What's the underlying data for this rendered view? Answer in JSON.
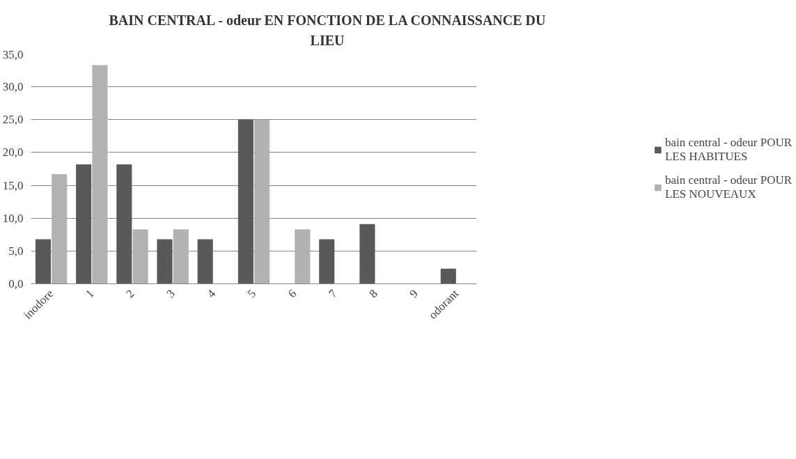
{
  "chart_data": {
    "type": "bar",
    "title": "BAIN CENTRAL - odeur EN FONCTION DE LA CONNAISSANCE DU LIEU",
    "categories": [
      "inodore",
      "1",
      "2",
      "3",
      "4",
      "5",
      "6",
      "7",
      "8",
      "9",
      "odorant"
    ],
    "series": [
      {
        "name": "bain central - odeur POUR LES HABITUES",
        "color": "#595959",
        "values": [
          6.8,
          18.2,
          18.2,
          6.8,
          6.8,
          25.0,
          0,
          6.8,
          9.1,
          0,
          2.3
        ]
      },
      {
        "name": "bain central - odeur POUR LES NOUVEAUX",
        "color": "#b2b2b2",
        "values": [
          16.7,
          33.3,
          8.3,
          8.3,
          0,
          25.0,
          8.3,
          0,
          0,
          0,
          0
        ]
      }
    ],
    "ylim": [
      0,
      35
    ],
    "yticks": [
      {
        "value": 0,
        "label": "0,0"
      },
      {
        "value": 5,
        "label": "5,0"
      },
      {
        "value": 10,
        "label": "10,0"
      },
      {
        "value": 15,
        "label": "15,0"
      },
      {
        "value": 20,
        "label": "20,0"
      },
      {
        "value": 25,
        "label": "25,0"
      },
      {
        "value": 30,
        "label": "30,0"
      },
      {
        "value": 35,
        "label": "35,0"
      }
    ],
    "grid": "y",
    "legend": "right"
  }
}
